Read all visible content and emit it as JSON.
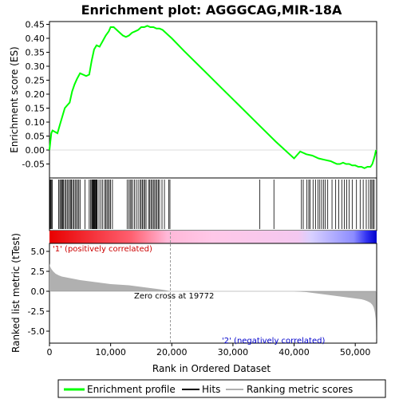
{
  "title": "Enrichment plot: AGGGCAG,MIR-18A",
  "legend": {
    "items": [
      {
        "label": "Enrichment profile",
        "color": "#00ff00",
        "kind": "line"
      },
      {
        "label": "Hits",
        "color": "#000000",
        "kind": "line"
      },
      {
        "label": "Ranking metric scores",
        "color": "#b0b0b0",
        "kind": "line"
      }
    ]
  },
  "chart_data": [
    {
      "type": "line",
      "name": "enrichment-profile",
      "ylabel": "Enrichment score (ES)",
      "xlim": [
        0,
        53500
      ],
      "ylim": [
        -0.1,
        0.46
      ],
      "yticks": [
        "0.45",
        "0.40",
        "0.35",
        "0.30",
        "0.25",
        "0.20",
        "0.15",
        "0.10",
        "0.05",
        "0.00",
        "-0.05"
      ],
      "ytick_values": [
        0.45,
        0.4,
        0.35,
        0.3,
        0.25,
        0.2,
        0.15,
        0.1,
        0.05,
        0.0,
        -0.05
      ],
      "line_color": "#00ff00",
      "x": [
        0,
        150,
        300,
        500,
        900,
        1300,
        1700,
        2100,
        2500,
        2900,
        3300,
        3700,
        4100,
        4500,
        5000,
        5500,
        6000,
        6500,
        6900,
        7300,
        7700,
        8200,
        8700,
        9200,
        9700,
        10000,
        10500,
        11000,
        11500,
        12000,
        12500,
        13000,
        13500,
        14000,
        14500,
        15000,
        15500,
        16000,
        16500,
        17000,
        17500,
        18000,
        18500,
        19000,
        19500,
        20000,
        22000,
        25000,
        28000,
        31000,
        34000,
        37000,
        40000,
        41000,
        42000,
        43000,
        44000,
        45000,
        46000,
        46500,
        47000,
        47500,
        48000,
        48500,
        49000,
        49500,
        50000,
        50500,
        51000,
        51500,
        52000,
        52500,
        52800,
        53000,
        53200,
        53400
      ],
      "y": [
        0.0,
        0.03,
        0.06,
        0.07,
        0.065,
        0.06,
        0.09,
        0.12,
        0.15,
        0.16,
        0.17,
        0.21,
        0.235,
        0.255,
        0.275,
        0.27,
        0.265,
        0.27,
        0.32,
        0.36,
        0.375,
        0.37,
        0.39,
        0.41,
        0.425,
        0.44,
        0.44,
        0.43,
        0.42,
        0.41,
        0.405,
        0.41,
        0.42,
        0.425,
        0.43,
        0.44,
        0.44,
        0.445,
        0.44,
        0.44,
        0.435,
        0.435,
        0.43,
        0.42,
        0.41,
        0.4,
        0.355,
        0.29,
        0.225,
        0.16,
        0.095,
        0.03,
        -0.03,
        -0.005,
        -0.015,
        -0.02,
        -0.03,
        -0.035,
        -0.04,
        -0.045,
        -0.05,
        -0.05,
        -0.045,
        -0.05,
        -0.05,
        -0.055,
        -0.055,
        -0.06,
        -0.06,
        -0.065,
        -0.06,
        -0.06,
        -0.05,
        -0.035,
        -0.02,
        0.0
      ]
    },
    {
      "type": "scatter",
      "name": "hits",
      "xlim": [
        0,
        53500
      ],
      "x": [
        100,
        200,
        350,
        450,
        1500,
        1700,
        1850,
        2000,
        2150,
        2300,
        2500,
        2700,
        2900,
        3100,
        3300,
        3500,
        3600,
        3800,
        4000,
        4200,
        4400,
        4600,
        4800,
        5000,
        5800,
        6500,
        6700,
        6900,
        7000,
        7100,
        7200,
        7300,
        7400,
        7500,
        7600,
        7700,
        7800,
        8100,
        8400,
        8700,
        9000,
        9200,
        9400,
        9600,
        9800,
        10000,
        10300,
        12700,
        13000,
        13200,
        13400,
        13600,
        13900,
        14200,
        14500,
        14800,
        15000,
        15200,
        15400,
        15600,
        15800,
        16200,
        16400,
        16600,
        16800,
        17000,
        17200,
        17400,
        17600,
        17800,
        18000,
        18400,
        18800,
        19500,
        19700,
        34400,
        36700,
        41200,
        41500,
        42100,
        42400,
        42600,
        43100,
        43500,
        43900,
        44200,
        44500,
        44800,
        45100,
        45500,
        46200,
        46800,
        47300,
        47800,
        48200,
        48600,
        49000,
        49500,
        50200,
        50800,
        51300,
        51800,
        52200,
        52500,
        52700,
        52900,
        53100
      ]
    },
    {
      "type": "area",
      "name": "ranking-metric",
      "ylabel": "Ranked list metric (tTest)",
      "xlabel": "Rank in Ordered Dataset",
      "xlim": [
        0,
        53500
      ],
      "ylim": [
        -6.5,
        6.0
      ],
      "yticks": [
        "5.0",
        "2.5",
        "0.0",
        "-2.5",
        "-5.0"
      ],
      "ytick_values": [
        5.0,
        2.5,
        0.0,
        -2.5,
        -5.0
      ],
      "xticks": [
        "0",
        "10,000",
        "20,000",
        "30,000",
        "40,000",
        "50,000"
      ],
      "xtick_values": [
        0,
        10000,
        20000,
        30000,
        40000,
        50000
      ],
      "fill_color": "#b0b0b0",
      "x": [
        0,
        100,
        300,
        600,
        1000,
        1500,
        2000,
        3000,
        4000,
        5000,
        6000,
        7000,
        8000,
        9000,
        10000,
        11000,
        12000,
        13000,
        14000,
        15000,
        16000,
        17000,
        18000,
        19000,
        19772,
        25000,
        30000,
        35000,
        40000,
        41000,
        42000,
        43000,
        44000,
        45000,
        46000,
        47000,
        48000,
        49000,
        50000,
        51000,
        51500,
        52000,
        52500,
        52800,
        53000,
        53200,
        53350,
        53450
      ],
      "y": [
        3.5,
        3.1,
        2.8,
        2.5,
        2.2,
        2.0,
        1.85,
        1.7,
        1.55,
        1.4,
        1.3,
        1.2,
        1.1,
        1.0,
        0.9,
        0.85,
        0.8,
        0.75,
        0.65,
        0.55,
        0.45,
        0.35,
        0.25,
        0.12,
        0.0,
        0.0,
        0.0,
        0.0,
        0.0,
        -0.05,
        -0.1,
        -0.2,
        -0.3,
        -0.4,
        -0.5,
        -0.6,
        -0.7,
        -0.8,
        -0.9,
        -1.0,
        -1.1,
        -1.25,
        -1.45,
        -1.7,
        -2.0,
        -2.6,
        -3.5,
        -6.2
      ]
    }
  ],
  "annotations": {
    "positive": "'1' (positively correlated)",
    "zero_cross": "Zero cross at 19772",
    "negative": "'2' (negatively correlated)"
  },
  "colors": {
    "positive_label": "#cc0000",
    "negative_label": "#0000cc",
    "axis": "#000000"
  }
}
